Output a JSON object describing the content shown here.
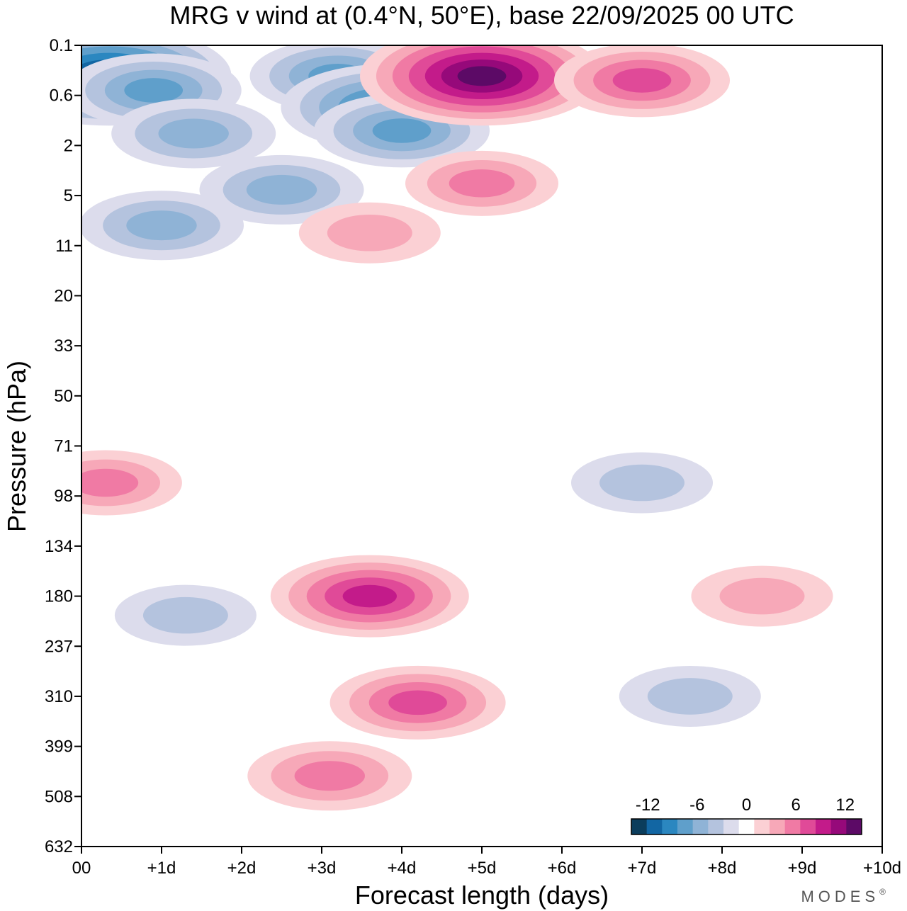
{
  "chart_data": {
    "type": "heatmap",
    "title": "MRG v wind at (0.4°N, 50°E),  base 22/09/2025  00 UTC",
    "xlabel": "Forecast length (days)",
    "ylabel": "Pressure (hPa)",
    "x_ticks": [
      "00",
      "+1d",
      "+2d",
      "+3d",
      "+4d",
      "+5d",
      "+6d",
      "+7d",
      "+8d",
      "+9d",
      "+10d"
    ],
    "x_range": [
      0,
      10
    ],
    "y_ticks": [
      "0.1",
      "0.6",
      "2",
      "5",
      "11",
      "20",
      "33",
      "50",
      "71",
      "98",
      "134",
      "180",
      "237",
      "310",
      "399",
      "508",
      "632"
    ],
    "y_range_hPa": [
      0.1,
      632
    ],
    "colorbar": {
      "tick_labels": [
        "-12",
        "-6",
        "0",
        "6",
        "12"
      ],
      "tick_values": [
        -12,
        -6,
        0,
        6,
        12
      ],
      "levels": [
        -14,
        -12,
        -10,
        -8,
        -6,
        -4,
        -2,
        0,
        2,
        4,
        6,
        8,
        10,
        12,
        14
      ],
      "colors": [
        "#0b3d5c",
        "#1266a3",
        "#2b87c0",
        "#5f9fcb",
        "#8fb3d6",
        "#b4c3de",
        "#dcdcec",
        "#ffffff",
        "#fbd0d4",
        "#f7a8b8",
        "#f07aa4",
        "#e04a98",
        "#c31b8a",
        "#96097a",
        "#5c0a66"
      ]
    },
    "features": [
      {
        "day": 0.35,
        "p": 0.3,
        "value": -14
      },
      {
        "day": 0.9,
        "p": 0.5,
        "value": -8
      },
      {
        "day": 1.4,
        "p": 1.5,
        "value": -7
      },
      {
        "day": 3.2,
        "p": 0.3,
        "value": -8
      },
      {
        "day": 3.8,
        "p": 0.8,
        "value": -11
      },
      {
        "day": 4.0,
        "p": 1.4,
        "value": -8
      },
      {
        "day": 2.5,
        "p": 4.5,
        "value": -7
      },
      {
        "day": 1.0,
        "p": 8,
        "value": -7
      },
      {
        "day": 5.0,
        "p": 0.3,
        "value": 14
      },
      {
        "day": 7.0,
        "p": 0.35,
        "value": 8
      },
      {
        "day": 5.0,
        "p": 4.0,
        "value": 6
      },
      {
        "day": 3.6,
        "p": 9,
        "value": 5
      },
      {
        "day": 0.3,
        "p": 90,
        "value": 6
      },
      {
        "day": 3.6,
        "p": 180,
        "value": 10
      },
      {
        "day": 4.2,
        "p": 320,
        "value": 8
      },
      {
        "day": 3.1,
        "p": 460,
        "value": 7
      },
      {
        "day": 8.5,
        "p": 180,
        "value": 5
      },
      {
        "day": 7.6,
        "p": 310,
        "value": -5
      },
      {
        "day": 1.3,
        "p": 200,
        "value": -5
      },
      {
        "day": 7.0,
        "p": 90,
        "value": -5
      }
    ]
  },
  "brand": {
    "text": "MODES",
    "mark": "®"
  }
}
